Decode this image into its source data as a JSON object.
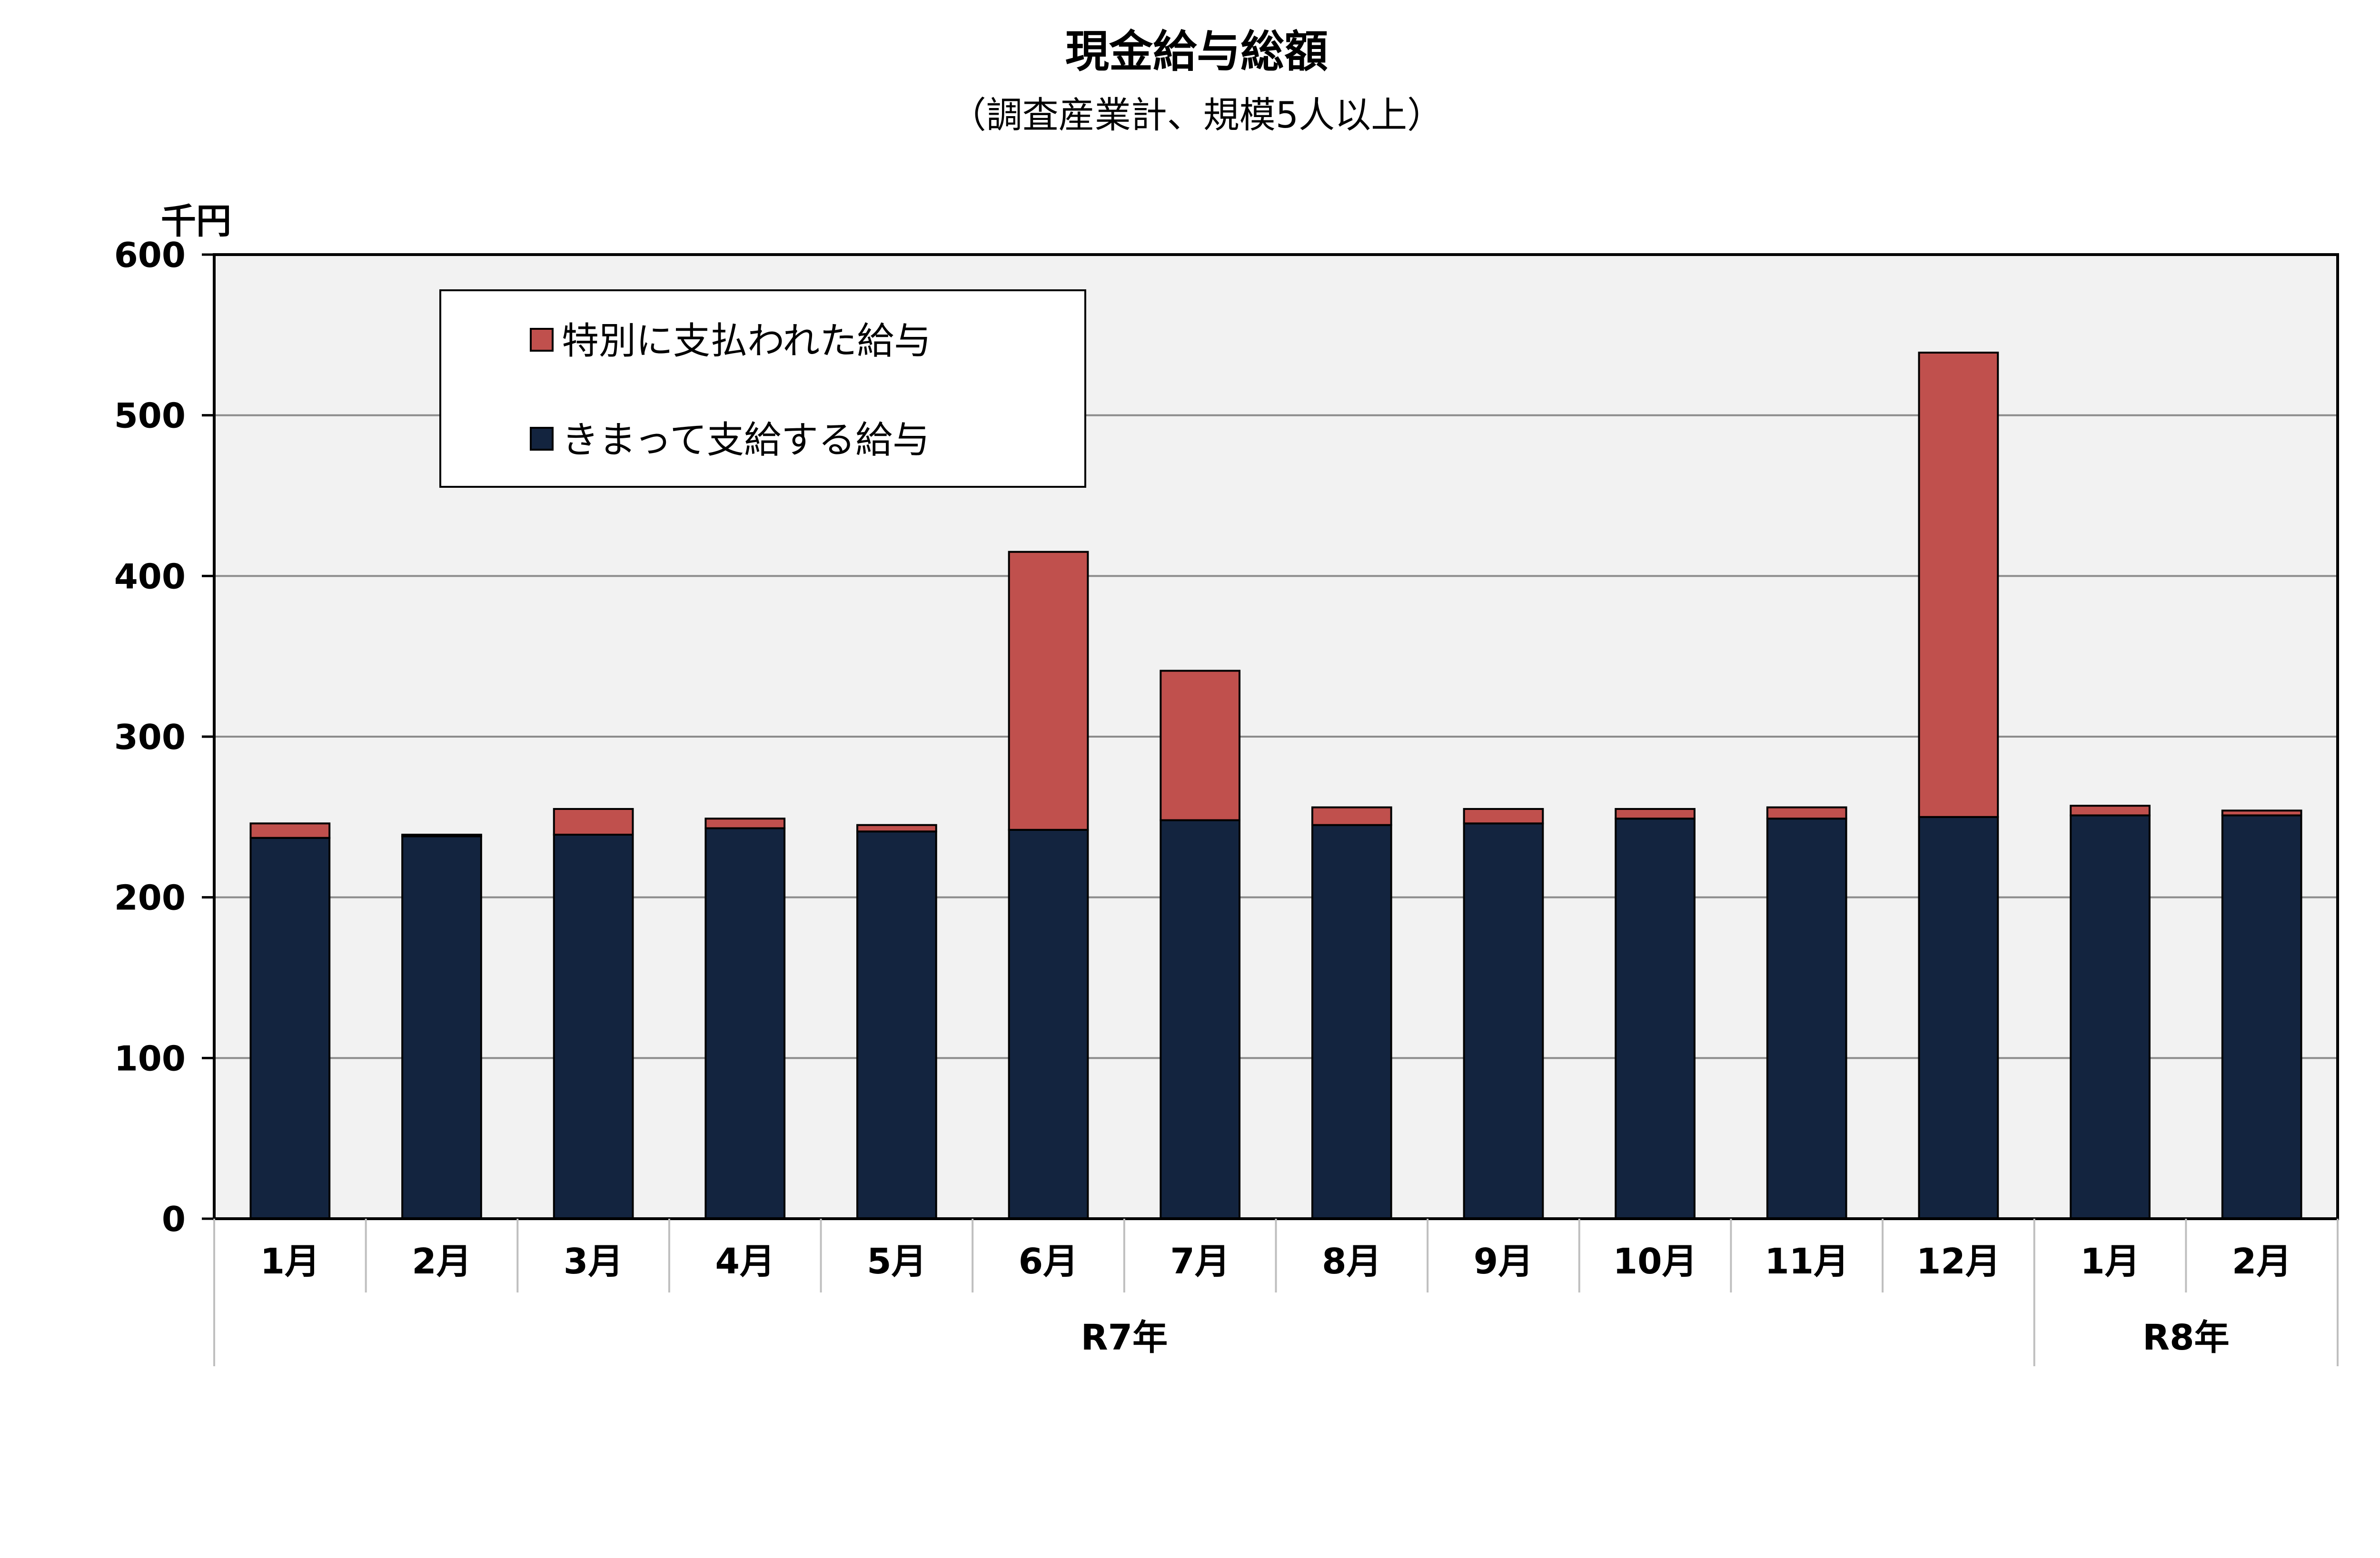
{
  "chart_data": {
    "type": "bar",
    "stacked": true,
    "title": "現金給与総額",
    "subtitle": "（調査産業計、規模5人以上）",
    "ylabel": "千円",
    "ylim": [
      0,
      600
    ],
    "yticks": [
      0,
      100,
      200,
      300,
      400,
      500,
      600
    ],
    "grid": true,
    "legend_position": "top-left",
    "categories": [
      "1月",
      "2月",
      "3月",
      "4月",
      "5月",
      "6月",
      "7月",
      "8月",
      "9月",
      "10月",
      "11月",
      "12月",
      "1月",
      "2月"
    ],
    "groups": [
      {
        "label": "R7年",
        "start": 0,
        "count": 12
      },
      {
        "label": "R8年",
        "start": 12,
        "count": 2
      }
    ],
    "series": [
      {
        "name": "きまって支給する給与",
        "color": "#13243f",
        "values": [
          237,
          238,
          239,
          243,
          241,
          242,
          248,
          245,
          246,
          249,
          249,
          250,
          251,
          251
        ]
      },
      {
        "name": "特別に支払われた給与",
        "color": "#c0504d",
        "values": [
          9,
          1,
          16,
          6,
          4,
          173,
          93,
          11,
          9,
          6,
          7,
          289,
          6,
          3
        ]
      }
    ],
    "legend_order": [
      1,
      0
    ]
  }
}
